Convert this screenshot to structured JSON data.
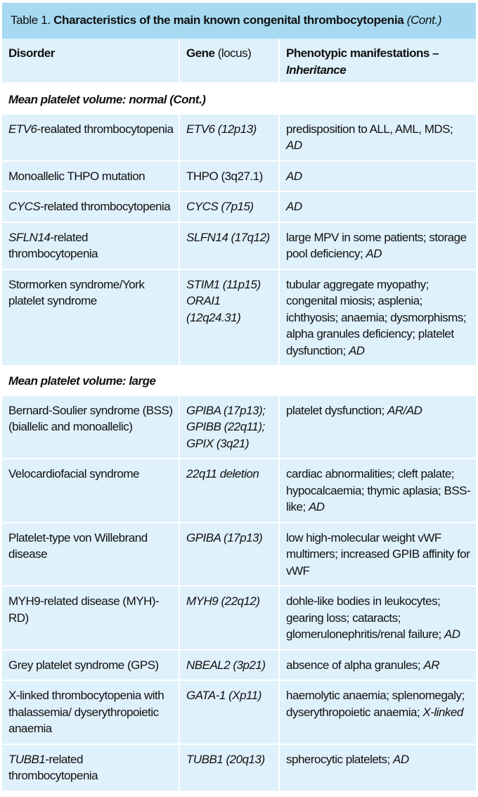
{
  "caption": {
    "label": "Table 1.",
    "title": "Characteristics of the main known congenital thrombocytopenia",
    "cont": "(Cont.)"
  },
  "headers": {
    "disorder": "Disorder",
    "gene": "Gene",
    "gene_locus": "(locus)",
    "pheno": "Phenotypic manifestations –",
    "inheritance": "Inheritance"
  },
  "sections": [
    {
      "title": "Mean platelet volume: normal (Cont.)",
      "rows": [
        {
          "disorder_i": "ETV6",
          "disorder": "-realated thrombocytopenia",
          "gene": "ETV6 (12p13)",
          "gene_italic": true,
          "pheno": "predisposition to ALL, AML, MDS;",
          "inh": "AD"
        },
        {
          "disorder_i": "",
          "disorder": "Monoallelic THPO mutation",
          "gene": "THPO (3q27.1)",
          "gene_italic": false,
          "pheno": "",
          "inh": "AD"
        },
        {
          "disorder_i": "CYCS",
          "disorder": "-related thrombocytopenia",
          "gene": "CYCS (7p15)",
          "gene_italic": true,
          "pheno": "",
          "inh": "AD"
        },
        {
          "disorder_i": "SFLN14",
          "disorder": "-related thrombocytopenia",
          "gene": "SLFN14 (17q12)",
          "gene_italic": true,
          "pheno": "large MPV in some patients; storage pool deficiency;",
          "inh": "AD"
        },
        {
          "disorder_i": "",
          "disorder": "Stormorken syndrome/York platelet syndrome",
          "gene": "STIM1 (11p15) ORAI1 (12q24.31)",
          "gene_italic": true,
          "pheno": "tubular aggregate myopathy; congenital miosis; asplenia; ichthyosis; anaemia; dysmorphisms; alpha granules deficiency; platelet dysfunction;",
          "inh": "AD"
        }
      ]
    },
    {
      "title": "Mean platelet volume: large",
      "rows": [
        {
          "disorder_i": "",
          "disorder": "Bernard-Soulier syndrome (BSS) (biallelic and monoallelic)",
          "gene": "GPIBA (17p13); GPIBB (22q11); GPIX (3q21)",
          "gene_italic": true,
          "pheno": "platelet dysfunction;",
          "inh": "AR/AD"
        },
        {
          "disorder_i": "",
          "disorder": "Velocardiofacial syndrome",
          "gene": "22q11 deletion",
          "gene_italic": true,
          "pheno": "cardiac abnormalities; cleft palate; hypocalcaemia; thymic aplasia; BSS-like;",
          "inh": "AD"
        },
        {
          "disorder_i": "",
          "disorder": "Platelet-type von Willebrand disease",
          "gene": "GPIBA (17p13)",
          "gene_italic": true,
          "pheno": "low high-molecular weight vWF multimers; increased GPIB affinity for vWF",
          "inh": ""
        },
        {
          "disorder_i": "",
          "disorder": "MYH9-related disease (MYH)-RD)",
          "gene": "MYH9 (22q12)",
          "gene_italic": true,
          "pheno": "dohle-like bodies in leukocytes; gearing loss; cataracts; glomerulonephritis/renal failure;",
          "inh": "AD"
        },
        {
          "disorder_i": "",
          "disorder": "Grey platelet syndrome (GPS)",
          "gene": "NBEAL2 (3p21)",
          "gene_italic": true,
          "pheno": "absence of alpha granules;",
          "inh": "AR"
        },
        {
          "disorder_i": "",
          "disorder": "X-linked thrombocytopenia with thalassemia/ dyserythropoietic anaemia",
          "gene": "GATA-1 (Xp11)",
          "gene_italic": true,
          "pheno": "haemolytic anaemia; splenomegaly; dyserythropoietic anaemia;",
          "inh": "X-linked"
        },
        {
          "disorder_i": "TUBB1",
          "disorder": "-related thrombocytopenia",
          "gene": "TUBB1 (20q13)",
          "gene_italic": true,
          "pheno": "spherocytic platelets;",
          "inh": "AD"
        }
      ]
    }
  ]
}
